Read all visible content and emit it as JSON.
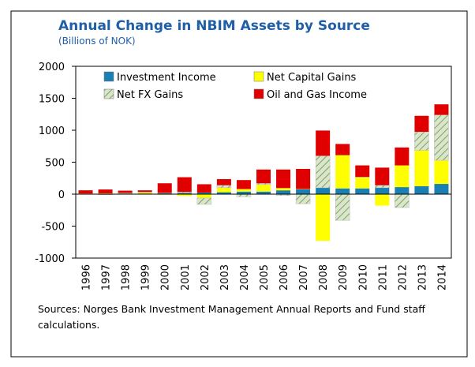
{
  "chart_data": {
    "type": "stacked_bar",
    "title": "Annual Change in NBIM Assets by Source",
    "subtitle": "(Billions of NOK)",
    "source": "Sources: Norges Bank Investment Management Annual Reports and Fund staff calculations.",
    "categories": [
      "1996",
      "1997",
      "1998",
      "1999",
      "2000",
      "2001",
      "2002",
      "2003",
      "2004",
      "2005",
      "2006",
      "2007",
      "2008",
      "2009",
      "2010",
      "2011",
      "2012",
      "2013",
      "2014"
    ],
    "series": [
      {
        "name": "Investment Income",
        "color": "#1a7fb2",
        "values": [
          5,
          8,
          10,
          10,
          15,
          20,
          25,
          30,
          40,
          40,
          60,
          75,
          100,
          90,
          90,
          100,
          110,
          125,
          160
        ]
      },
      {
        "name": "Net Capital Gains",
        "color": "#ffff00",
        "values": [
          5,
          5,
          5,
          20,
          -10,
          -30,
          -60,
          70,
          40,
          110,
          35,
          5,
          -730,
          520,
          175,
          -180,
          340,
          560,
          370
        ]
      },
      {
        "name": "Net FX Gains",
        "color": "#d9e6cc",
        "pattern": "hatch",
        "values": [
          0,
          -10,
          5,
          5,
          5,
          15,
          -100,
          40,
          -40,
          20,
          -20,
          -150,
          500,
          -410,
          5,
          40,
          -210,
          290,
          710
        ]
      },
      {
        "name": "Oil and Gas Income",
        "color": "#e00000",
        "values": [
          50,
          60,
          35,
          25,
          150,
          230,
          130,
          95,
          140,
          215,
          290,
          315,
          395,
          175,
          180,
          275,
          280,
          250,
          165
        ]
      }
    ],
    "ylim": [
      -1000,
      2000
    ],
    "yticks": [
      -1000,
      -500,
      0,
      500,
      1000,
      1500,
      2000
    ]
  }
}
